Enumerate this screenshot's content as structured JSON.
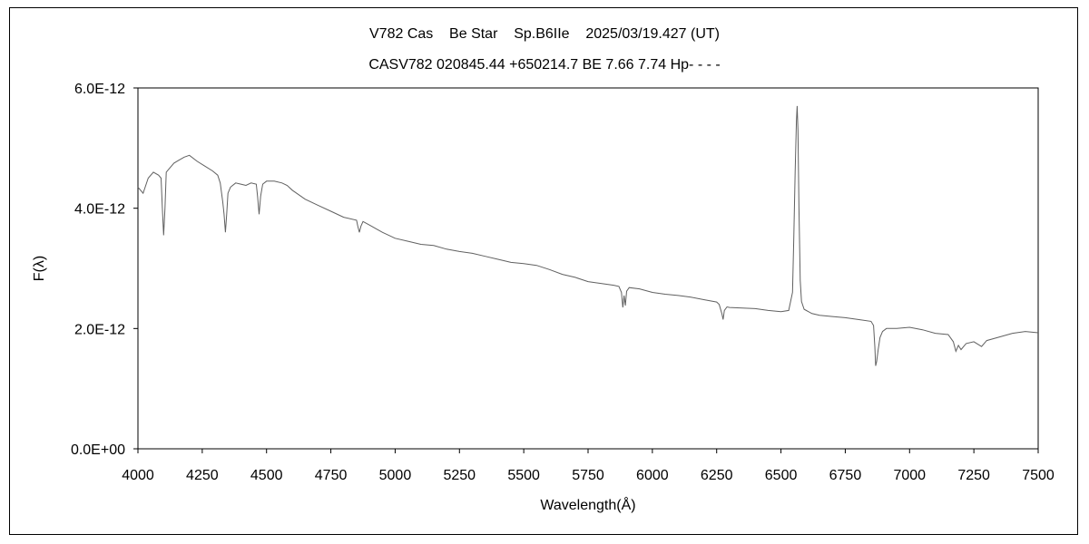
{
  "chart_data": {
    "type": "line",
    "title": "V782 Cas    Be Star    Sp.B6IIe    2025/03/19.427 (UT)",
    "subtitle": "CASV782 020845.44 +650214.7 BE 7.66 7.74 Hp- - - -",
    "xlabel": "Wavelength(Å)",
    "ylabel": "F(λ)",
    "xlim": [
      4000,
      7500
    ],
    "ylim": [
      0,
      6e-12
    ],
    "x_ticks": [
      4000,
      4250,
      4500,
      4750,
      5000,
      5250,
      5500,
      5750,
      6000,
      6250,
      6500,
      6750,
      7000,
      7250,
      7500
    ],
    "x_tick_labels": [
      "4000",
      "4250",
      "4500",
      "4750",
      "5000",
      "5250",
      "5500",
      "5750",
      "6000",
      "6250",
      "6500",
      "6750",
      "7000",
      "7250",
      "7500"
    ],
    "y_ticks": [
      0,
      2e-12,
      4e-12,
      6e-12
    ],
    "y_tick_labels": [
      "0.0E+00",
      "2.0E-12",
      "4.0E-12",
      "6.0E-12"
    ],
    "grid": false,
    "line_color": "#606060",
    "series": [
      {
        "x": [
          4000,
          4020,
          4040,
          4060,
          4080,
          4090,
          4095,
          4100,
          4105,
          4110,
          4120,
          4140,
          4160,
          4180,
          4200,
          4230,
          4260,
          4290,
          4310,
          4320,
          4330,
          4335,
          4340,
          4345,
          4350,
          4360,
          4380,
          4400,
          4420,
          4440,
          4460,
          4465,
          4471,
          4477,
          4485,
          4500,
          4530,
          4560,
          4580,
          4600,
          4650,
          4700,
          4750,
          4800,
          4850,
          4855,
          4861,
          4867,
          4875,
          4900,
          4950,
          5000,
          5050,
          5100,
          5150,
          5200,
          5250,
          5300,
          5350,
          5400,
          5450,
          5500,
          5550,
          5600,
          5650,
          5700,
          5750,
          5800,
          5850,
          5870,
          5880,
          5885,
          5890,
          5895,
          5900,
          5910,
          5950,
          6000,
          6050,
          6100,
          6150,
          6200,
          6250,
          6260,
          6270,
          6275,
          6280,
          6290,
          6300,
          6350,
          6400,
          6450,
          6500,
          6530,
          6545,
          6550,
          6555,
          6560,
          6563,
          6566,
          6570,
          6575,
          6580,
          6590,
          6620,
          6650,
          6700,
          6750,
          6800,
          6850,
          6860,
          6865,
          6868,
          6872,
          6878,
          6885,
          6895,
          6910,
          6930,
          6950,
          7000,
          7050,
          7100,
          7150,
          7170,
          7180,
          7190,
          7200,
          7220,
          7250,
          7280,
          7300,
          7350,
          7400,
          7450,
          7500
        ],
        "y": [
          4.35e-12,
          4.25e-12,
          4.5e-12,
          4.6e-12,
          4.55e-12,
          4.5e-12,
          4e-12,
          3.55e-12,
          4e-12,
          4.6e-12,
          4.65e-12,
          4.75e-12,
          4.8e-12,
          4.85e-12,
          4.88e-12,
          4.78e-12,
          4.7e-12,
          4.62e-12,
          4.55e-12,
          4.42e-12,
          4.1e-12,
          3.9e-12,
          3.6e-12,
          3.9e-12,
          4.25e-12,
          4.35e-12,
          4.42e-12,
          4.4e-12,
          4.38e-12,
          4.42e-12,
          4.4e-12,
          4.2e-12,
          3.9e-12,
          4.2e-12,
          4.4e-12,
          4.45e-12,
          4.45e-12,
          4.42e-12,
          4.38e-12,
          4.3e-12,
          4.15e-12,
          4.05e-12,
          3.95e-12,
          3.85e-12,
          3.8e-12,
          3.7e-12,
          3.6e-12,
          3.7e-12,
          3.78e-12,
          3.72e-12,
          3.6e-12,
          3.5e-12,
          3.45e-12,
          3.4e-12,
          3.38e-12,
          3.32e-12,
          3.28e-12,
          3.25e-12,
          3.2e-12,
          3.15e-12,
          3.1e-12,
          3.08e-12,
          3.05e-12,
          2.98e-12,
          2.9e-12,
          2.85e-12,
          2.78e-12,
          2.75e-12,
          2.72e-12,
          2.7e-12,
          2.6e-12,
          2.35e-12,
          2.55e-12,
          2.38e-12,
          2.62e-12,
          2.68e-12,
          2.66e-12,
          2.6e-12,
          2.57e-12,
          2.55e-12,
          2.52e-12,
          2.48e-12,
          2.44e-12,
          2.4e-12,
          2.25e-12,
          2.15e-12,
          2.3e-12,
          2.36e-12,
          2.35e-12,
          2.34e-12,
          2.33e-12,
          2.3e-12,
          2.28e-12,
          2.3e-12,
          2.6e-12,
          3.5e-12,
          4.6e-12,
          5.45e-12,
          5.7e-12,
          5.3e-12,
          4e-12,
          2.8e-12,
          2.45e-12,
          2.32e-12,
          2.25e-12,
          2.22e-12,
          2.2e-12,
          2.18e-12,
          2.15e-12,
          2.12e-12,
          2.05e-12,
          1.7e-12,
          1.38e-12,
          1.45e-12,
          1.65e-12,
          1.85e-12,
          1.95e-12,
          2e-12,
          2e-12,
          2e-12,
          2.02e-12,
          1.98e-12,
          1.92e-12,
          1.9e-12,
          1.78e-12,
          1.62e-12,
          1.72e-12,
          1.65e-12,
          1.75e-12,
          1.78e-12,
          1.7e-12,
          1.8e-12,
          1.86e-12,
          1.92e-12,
          1.95e-12,
          1.93e-12
        ]
      }
    ]
  }
}
